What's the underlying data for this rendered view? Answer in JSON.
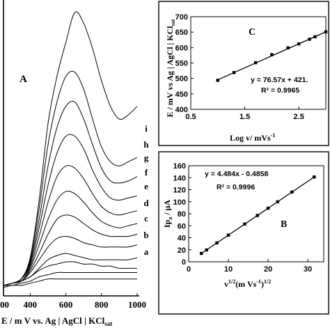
{
  "chart_data": [
    {
      "panel": "A",
      "type": "line",
      "panel_label": "A",
      "xlabel_parts": [
        "E / m V vs. Ag | AgCl | KCl",
        "sat"
      ],
      "x_ticks": [
        "00",
        "400",
        "600",
        "800",
        "1000"
      ],
      "xlim": [
        250,
        1000
      ],
      "curve_labels": [
        "i",
        "h",
        "g",
        "f",
        "e",
        "d",
        "c",
        "b",
        "a"
      ],
      "series": [
        {
          "label": "i",
          "peak_x": 650,
          "x": [
            250,
            300,
            350,
            400,
            450,
            500,
            550,
            600,
            650,
            700,
            750,
            800,
            850,
            900,
            950,
            1000
          ],
          "y": [
            0.02,
            0.03,
            0.05,
            0.15,
            0.42,
            0.78,
            1.0,
            1.16,
            1.3,
            1.25,
            1.13,
            0.98,
            0.86,
            0.8,
            0.82,
            0.86
          ]
        },
        {
          "label": "h",
          "peak_x": 630,
          "x": [
            250,
            300,
            350,
            400,
            450,
            500,
            550,
            600,
            650,
            700,
            750,
            800,
            850,
            900,
            950,
            1000
          ],
          "y": [
            0.02,
            0.03,
            0.05,
            0.14,
            0.38,
            0.68,
            0.88,
            1.0,
            1.02,
            0.94,
            0.8,
            0.67,
            0.6,
            0.58,
            0.6,
            0.62
          ]
        },
        {
          "label": "g",
          "peak_x": 630,
          "x": [
            250,
            300,
            350,
            400,
            450,
            500,
            550,
            600,
            650,
            700,
            750,
            800,
            850,
            900,
            950,
            1000
          ],
          "y": [
            0.02,
            0.03,
            0.05,
            0.13,
            0.33,
            0.58,
            0.76,
            0.86,
            0.88,
            0.8,
            0.68,
            0.57,
            0.51,
            0.5,
            0.51,
            0.53
          ]
        },
        {
          "label": "f",
          "peak_x": 620,
          "x": [
            250,
            300,
            350,
            400,
            450,
            500,
            550,
            600,
            650,
            700,
            750,
            800,
            850,
            900,
            950,
            1000
          ],
          "y": [
            0.02,
            0.03,
            0.05,
            0.12,
            0.29,
            0.49,
            0.64,
            0.72,
            0.72,
            0.66,
            0.56,
            0.48,
            0.43,
            0.42,
            0.43,
            0.44
          ]
        },
        {
          "label": "e",
          "peak_x": 610,
          "x": [
            250,
            300,
            350,
            400,
            450,
            500,
            550,
            600,
            650,
            700,
            750,
            800,
            850,
            900,
            950,
            1000
          ],
          "y": [
            0.02,
            0.03,
            0.05,
            0.11,
            0.25,
            0.41,
            0.53,
            0.58,
            0.57,
            0.52,
            0.45,
            0.39,
            0.36,
            0.35,
            0.36,
            0.37
          ]
        },
        {
          "label": "d",
          "peak_x": 600,
          "x": [
            250,
            300,
            350,
            400,
            450,
            500,
            550,
            600,
            650,
            700,
            750,
            800,
            850,
            900,
            950,
            1000
          ],
          "y": [
            0.02,
            0.03,
            0.04,
            0.1,
            0.21,
            0.33,
            0.42,
            0.46,
            0.45,
            0.41,
            0.36,
            0.32,
            0.3,
            0.29,
            0.3,
            0.31
          ]
        },
        {
          "label": "c",
          "peak_x": 590,
          "x": [
            250,
            300,
            350,
            400,
            450,
            500,
            550,
            600,
            650,
            700,
            750,
            800,
            850,
            900,
            950,
            1000
          ],
          "y": [
            0.02,
            0.03,
            0.04,
            0.09,
            0.17,
            0.26,
            0.33,
            0.35,
            0.34,
            0.31,
            0.28,
            0.26,
            0.25,
            0.25,
            0.25,
            0.26
          ]
        },
        {
          "label": "b",
          "peak_x": 580,
          "x": [
            250,
            300,
            350,
            400,
            450,
            500,
            550,
            600,
            650,
            700,
            750,
            800,
            850,
            900,
            950,
            1000
          ],
          "y": [
            0.02,
            0.03,
            0.04,
            0.08,
            0.14,
            0.2,
            0.24,
            0.25,
            0.24,
            0.22,
            0.21,
            0.2,
            0.2,
            0.2,
            0.2,
            0.21
          ]
        },
        {
          "label": "a",
          "peak_x": 570,
          "x": [
            250,
            300,
            350,
            400,
            450,
            500,
            550,
            600,
            650,
            700,
            750,
            800,
            850,
            900,
            950,
            1000
          ],
          "y": [
            0.02,
            0.03,
            0.04,
            0.06,
            0.1,
            0.14,
            0.16,
            0.17,
            0.16,
            0.15,
            0.14,
            0.14,
            0.14,
            0.14,
            0.14,
            0.15
          ]
        },
        {
          "label": "",
          "x": [
            250,
            300,
            350,
            400,
            450,
            500,
            550,
            600,
            650,
            700,
            750,
            800,
            850,
            900,
            950,
            1000
          ],
          "y": [
            0.02,
            0.03,
            0.04,
            0.06,
            0.09,
            0.11,
            0.12,
            0.13,
            0.13,
            0.12,
            0.12,
            0.11,
            0.11,
            0.1,
            0.1,
            0.1
          ]
        },
        {
          "label": "",
          "x": [
            250,
            300,
            350,
            400,
            450,
            500,
            550,
            600,
            650,
            700,
            750,
            800,
            850,
            900,
            950,
            1000
          ],
          "y": [
            0.02,
            0.02,
            0.03,
            0.04,
            0.06,
            0.07,
            0.08,
            0.08,
            0.08,
            0.08,
            0.08,
            0.08,
            0.08,
            0.08,
            0.08,
            0.08
          ]
        },
        {
          "label": "",
          "x": [
            250,
            300,
            350,
            400,
            450,
            500,
            550,
            600,
            650,
            700,
            750,
            800,
            850,
            900,
            950,
            1000
          ],
          "y": [
            0.01,
            0.02,
            0.02,
            0.03,
            0.04,
            0.05,
            0.05,
            0.05,
            0.05,
            0.05,
            0.05,
            0.05,
            0.05,
            0.05,
            0.05,
            0.05
          ]
        }
      ]
    },
    {
      "panel": "C",
      "type": "scatter",
      "panel_label": "C",
      "xlabel_parts": [
        "Log v/ mVs",
        "-1"
      ],
      "ylabel_parts": [
        "E / mV vs Ag | AgCl | KCl",
        "sat"
      ],
      "x_ticks": [
        "0.5",
        "1.5",
        "2.5"
      ],
      "y_ticks": [
        "400",
        "450",
        "500",
        "550",
        "600",
        "650",
        "700"
      ],
      "xlim": [
        0.5,
        3.0
      ],
      "ylim": [
        400,
        700
      ],
      "x": [
        1.0,
        1.3,
        1.7,
        2.0,
        2.3,
        2.5,
        2.7,
        2.8,
        3.0
      ],
      "y": [
        494,
        519,
        551,
        577,
        599,
        612,
        627,
        635,
        651
      ],
      "fit_line": {
        "x": [
          0.98,
          3.0
        ],
        "y": [
          494,
          651
        ]
      },
      "equation": "y = 76.57x + 421.",
      "r2": "R² = 0.9965"
    },
    {
      "panel": "B",
      "type": "scatter",
      "panel_label": "B",
      "xlabel_parts": [
        "v",
        "1/2",
        "(m Vs",
        "-1",
        ")",
        "1/2"
      ],
      "ylabel_parts": [
        "Ip",
        "a",
        " / μA"
      ],
      "x_ticks": [
        "0",
        "10",
        "20",
        "30"
      ],
      "y_ticks": [
        "0",
        "20",
        "40",
        "60",
        "80",
        "100",
        "120",
        "140",
        "160"
      ],
      "xlim": [
        0,
        34
      ],
      "ylim": [
        0,
        160
      ],
      "x": [
        3.2,
        4.5,
        7.1,
        10,
        14.1,
        17.3,
        20,
        22.4,
        26,
        31.6
      ],
      "y": [
        13.9,
        19.7,
        31.4,
        44.4,
        62.8,
        77.1,
        89.2,
        99.9,
        116.1,
        141.2
      ],
      "fit_line": {
        "x": [
          3.2,
          31.6
        ],
        "y": [
          13.9,
          141.2
        ]
      },
      "equation": "y = 4.484x - 0.4858",
      "r2": "R² = 0.9996"
    }
  ]
}
